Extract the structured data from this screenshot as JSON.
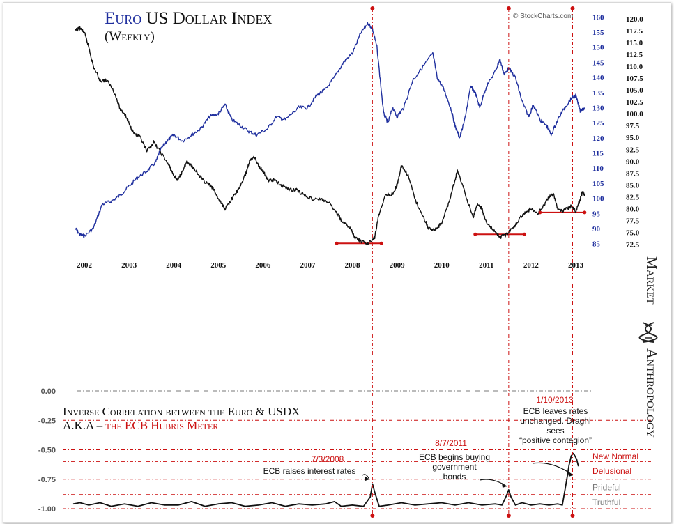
{
  "watermark": "© StockCharts.com",
  "brand": {
    "line1": "Market",
    "line2": "Anthropology",
    "icon": "dna-helix-icon"
  },
  "colors": {
    "euro": "#1f2f9e",
    "usdx": "#111111",
    "accent": "#cc1111",
    "label_gray": "#777777"
  },
  "chart_data": [
    {
      "type": "line",
      "title": {
        "euro": "Euro",
        "rest": " US Dollar Index"
      },
      "subtitle": "(Weekly)",
      "x_ticks": [
        "2002",
        "2003",
        "2004",
        "2005",
        "2006",
        "2007",
        "2008",
        "2009",
        "2010",
        "2011",
        "2012",
        "2013"
      ],
      "xlim": [
        2001.85,
        2013.35
      ],
      "y_left": {
        "ticks": [
          "160",
          "155",
          "150",
          "145",
          "140",
          "135",
          "130",
          "125",
          "120",
          "115",
          "110",
          "105",
          "100",
          "95",
          "90",
          "85"
        ],
        "ylim": [
          84,
          161
        ]
      },
      "y_right": {
        "ticks": [
          "120.0",
          "117.5",
          "115.0",
          "112.5",
          "110.0",
          "107.5",
          "105.0",
          "102.5",
          "100.0",
          "97.5",
          "95.0",
          "92.5",
          "90.0",
          "87.5",
          "85.0",
          "82.5",
          "80.0",
          "77.5",
          "75.0",
          "72.5"
        ],
        "ylim": [
          72,
          121
        ]
      },
      "series": [
        {
          "axis": "left",
          "points": [
            [
              2001.9,
              90
            ],
            [
              2002.0,
              88
            ],
            [
              2002.1,
              87.5
            ],
            [
              2002.3,
              90
            ],
            [
              2002.5,
              98
            ],
            [
              2002.7,
              99
            ],
            [
              2002.9,
              101
            ],
            [
              2003.1,
              104
            ],
            [
              2003.3,
              107
            ],
            [
              2003.5,
              109
            ],
            [
              2003.7,
              112
            ],
            [
              2003.8,
              116
            ],
            [
              2003.95,
              119
            ],
            [
              2004.1,
              121
            ],
            [
              2004.3,
              119
            ],
            [
              2004.5,
              121
            ],
            [
              2004.7,
              123
            ],
            [
              2004.9,
              127
            ],
            [
              2005.1,
              128
            ],
            [
              2005.25,
              131
            ],
            [
              2005.4,
              126
            ],
            [
              2005.6,
              124
            ],
            [
              2005.8,
              122
            ],
            [
              2005.95,
              121
            ],
            [
              2006.2,
              123
            ],
            [
              2006.4,
              127
            ],
            [
              2006.6,
              126
            ],
            [
              2006.9,
              130
            ],
            [
              2007.1,
              130
            ],
            [
              2007.3,
              134
            ],
            [
              2007.5,
              136
            ],
            [
              2007.7,
              140
            ],
            [
              2007.9,
              145
            ],
            [
              2008.1,
              148
            ],
            [
              2008.3,
              155
            ],
            [
              2008.45,
              158
            ],
            [
              2008.55,
              156
            ],
            [
              2008.65,
              150
            ],
            [
              2008.8,
              128
            ],
            [
              2008.9,
              125
            ],
            [
              2009.0,
              130
            ],
            [
              2009.1,
              127
            ],
            [
              2009.25,
              130
            ],
            [
              2009.45,
              139
            ],
            [
              2009.7,
              144
            ],
            [
              2009.9,
              148
            ],
            [
              2010.0,
              140
            ],
            [
              2010.15,
              136
            ],
            [
              2010.3,
              130
            ],
            [
              2010.4,
              124
            ],
            [
              2010.5,
              120
            ],
            [
              2010.6,
              125
            ],
            [
              2010.75,
              137
            ],
            [
              2010.85,
              135
            ],
            [
              2010.95,
              130
            ],
            [
              2011.1,
              137
            ],
            [
              2011.3,
              142
            ],
            [
              2011.4,
              146
            ],
            [
              2011.5,
              141
            ],
            [
              2011.6,
              143
            ],
            [
              2011.75,
              140
            ],
            [
              2011.9,
              132
            ],
            [
              2012.05,
              127
            ],
            [
              2012.15,
              131
            ],
            [
              2012.3,
              126
            ],
            [
              2012.45,
              124
            ],
            [
              2012.55,
              121
            ],
            [
              2012.7,
              126
            ],
            [
              2012.85,
              130
            ],
            [
              2013.0,
              133
            ],
            [
              2013.1,
              134
            ],
            [
              2013.2,
              129
            ],
            [
              2013.3,
              130
            ]
          ]
        },
        {
          "axis": "right",
          "points": [
            [
              2001.9,
              117.5
            ],
            [
              2002.0,
              118
            ],
            [
              2002.1,
              117
            ],
            [
              2002.2,
              114
            ],
            [
              2002.3,
              110
            ],
            [
              2002.45,
              107
            ],
            [
              2002.6,
              107
            ],
            [
              2002.75,
              105
            ],
            [
              2002.9,
              101
            ],
            [
              2003.0,
              100
            ],
            [
              2003.1,
              98
            ],
            [
              2003.2,
              96
            ],
            [
              2003.35,
              95
            ],
            [
              2003.5,
              92
            ],
            [
              2003.65,
              94
            ],
            [
              2003.8,
              92
            ],
            [
              2004.0,
              89
            ],
            [
              2004.1,
              87
            ],
            [
              2004.2,
              86
            ],
            [
              2004.3,
              88
            ],
            [
              2004.4,
              90
            ],
            [
              2004.5,
              89
            ],
            [
              2004.6,
              88
            ],
            [
              2004.75,
              86
            ],
            [
              2004.9,
              85
            ],
            [
              2005.0,
              84
            ],
            [
              2005.1,
              82
            ],
            [
              2005.25,
              80
            ],
            [
              2005.4,
              82
            ],
            [
              2005.55,
              84
            ],
            [
              2005.7,
              87
            ],
            [
              2005.8,
              90
            ],
            [
              2005.9,
              91
            ],
            [
              2006.0,
              89
            ],
            [
              2006.1,
              88
            ],
            [
              2006.2,
              86
            ],
            [
              2006.35,
              86
            ],
            [
              2006.5,
              85
            ],
            [
              2006.7,
              84
            ],
            [
              2006.85,
              84
            ],
            [
              2007.0,
              83
            ],
            [
              2007.2,
              82
            ],
            [
              2007.4,
              82
            ],
            [
              2007.6,
              81
            ],
            [
              2007.75,
              79
            ],
            [
              2007.9,
              77
            ],
            [
              2008.05,
              76
            ],
            [
              2008.15,
              74
            ],
            [
              2008.3,
              73
            ],
            [
              2008.45,
              72.6
            ],
            [
              2008.6,
              74
            ],
            [
              2008.7,
              79
            ],
            [
              2008.85,
              83
            ],
            [
              2009.0,
              83
            ],
            [
              2009.1,
              85
            ],
            [
              2009.2,
              89
            ],
            [
              2009.35,
              87
            ],
            [
              2009.5,
              82
            ],
            [
              2009.7,
              78
            ],
            [
              2009.8,
              76
            ],
            [
              2009.95,
              75.5
            ],
            [
              2010.1,
              77
            ],
            [
              2010.25,
              81
            ],
            [
              2010.4,
              86
            ],
            [
              2010.45,
              88
            ],
            [
              2010.6,
              84
            ],
            [
              2010.8,
              78
            ],
            [
              2010.9,
              81
            ],
            [
              2011.0,
              80
            ],
            [
              2011.1,
              77
            ],
            [
              2011.25,
              75.5
            ],
            [
              2011.4,
              74
            ],
            [
              2011.55,
              74.5
            ],
            [
              2011.7,
              76
            ],
            [
              2011.85,
              78
            ],
            [
              2011.95,
              79
            ],
            [
              2012.1,
              80
            ],
            [
              2012.25,
              79
            ],
            [
              2012.4,
              81
            ],
            [
              2012.5,
              82.5
            ],
            [
              2012.6,
              83
            ],
            [
              2012.7,
              80
            ],
            [
              2012.8,
              79.5
            ],
            [
              2012.9,
              80
            ],
            [
              2013.0,
              80.5
            ],
            [
              2013.1,
              79.5
            ],
            [
              2013.2,
              82
            ],
            [
              2013.25,
              83.5
            ],
            [
              2013.3,
              83
            ]
          ]
        }
      ],
      "lows": [
        {
          "y": 72.7,
          "x_from": 2007.75,
          "x_to": 2008.75
        },
        {
          "y": 74.6,
          "x_from": 2010.85,
          "x_to": 2011.95
        },
        {
          "y": 79.2,
          "x_from": 2012.3,
          "x_to": 2013.3
        }
      ]
    },
    {
      "type": "line",
      "title": "Inverse Correlation between the Euro & USDX",
      "subtitle_prefix": "A.K.A – ",
      "subtitle_highlight": "the ECB Hubris Meter",
      "y_ticks": [
        "0.00",
        "-0.25",
        "-0.50",
        "-0.75",
        "-1.00"
      ],
      "ylim": [
        -1.0,
        0.0
      ],
      "xlim": [
        2001.85,
        2013.35
      ],
      "zones": [
        {
          "label": "New Normal",
          "from": -0.5,
          "to": -0.6
        },
        {
          "label": "Delusional",
          "from": -0.6,
          "to": -0.75
        },
        {
          "label": "Prideful",
          "from": -0.75,
          "to": -0.88
        },
        {
          "label": "Truthful",
          "from": -0.88,
          "to": -1.0
        }
      ],
      "series": [
        {
          "points": [
            [
              2001.85,
              -0.96
            ],
            [
              2002.0,
              -0.95
            ],
            [
              2002.2,
              -0.97
            ],
            [
              2002.45,
              -0.95
            ],
            [
              2002.7,
              -0.98
            ],
            [
              2003.0,
              -0.96
            ],
            [
              2003.3,
              -0.98
            ],
            [
              2003.6,
              -0.95
            ],
            [
              2003.9,
              -0.97
            ],
            [
              2004.2,
              -0.97
            ],
            [
              2004.5,
              -0.94
            ],
            [
              2004.8,
              -0.98
            ],
            [
              2005.1,
              -0.96
            ],
            [
              2005.4,
              -0.95
            ],
            [
              2005.7,
              -0.98
            ],
            [
              2006.0,
              -0.97
            ],
            [
              2006.3,
              -0.95
            ],
            [
              2006.6,
              -0.98
            ],
            [
              2006.9,
              -0.96
            ],
            [
              2007.2,
              -0.97
            ],
            [
              2007.5,
              -0.96
            ],
            [
              2007.7,
              -0.94
            ],
            [
              2007.85,
              -0.98
            ],
            [
              2008.1,
              -0.97
            ],
            [
              2008.35,
              -0.98
            ],
            [
              2008.5,
              -0.9
            ],
            [
              2008.55,
              -0.79
            ],
            [
              2008.6,
              -0.86
            ],
            [
              2008.7,
              -0.98
            ],
            [
              2008.9,
              -0.97
            ],
            [
              2009.2,
              -0.95
            ],
            [
              2009.5,
              -0.97
            ],
            [
              2009.8,
              -0.96
            ],
            [
              2010.1,
              -0.95
            ],
            [
              2010.4,
              -0.97
            ],
            [
              2010.7,
              -0.95
            ],
            [
              2011.0,
              -0.97
            ],
            [
              2011.3,
              -0.96
            ],
            [
              2011.45,
              -0.97
            ],
            [
              2011.55,
              -0.89
            ],
            [
              2011.6,
              -0.84
            ],
            [
              2011.65,
              -0.9
            ],
            [
              2011.75,
              -0.97
            ],
            [
              2011.9,
              -0.95
            ],
            [
              2012.1,
              -0.97
            ],
            [
              2012.3,
              -0.96
            ],
            [
              2012.5,
              -0.97
            ],
            [
              2012.7,
              -0.96
            ],
            [
              2012.8,
              -0.97
            ],
            [
              2012.9,
              -0.75
            ],
            [
              2012.95,
              -0.63
            ],
            [
              2013.0,
              -0.55
            ],
            [
              2013.05,
              -0.53
            ],
            [
              2013.12,
              -0.58
            ],
            [
              2013.16,
              -0.64
            ]
          ]
        }
      ],
      "events": [
        {
          "x": 2008.55,
          "date": "7/3/2008",
          "text": [
            "ECB raises interest rates"
          ]
        },
        {
          "x": 2011.6,
          "date": "8/7/2011",
          "text": [
            "ECB begins buying",
            "government",
            "bonds"
          ]
        },
        {
          "x": 2013.03,
          "date": "1/10/2013",
          "text": [
            "ECB leaves rates",
            "unchanged. Draghi",
            "sees",
            "“positive contagion”"
          ]
        }
      ]
    }
  ]
}
